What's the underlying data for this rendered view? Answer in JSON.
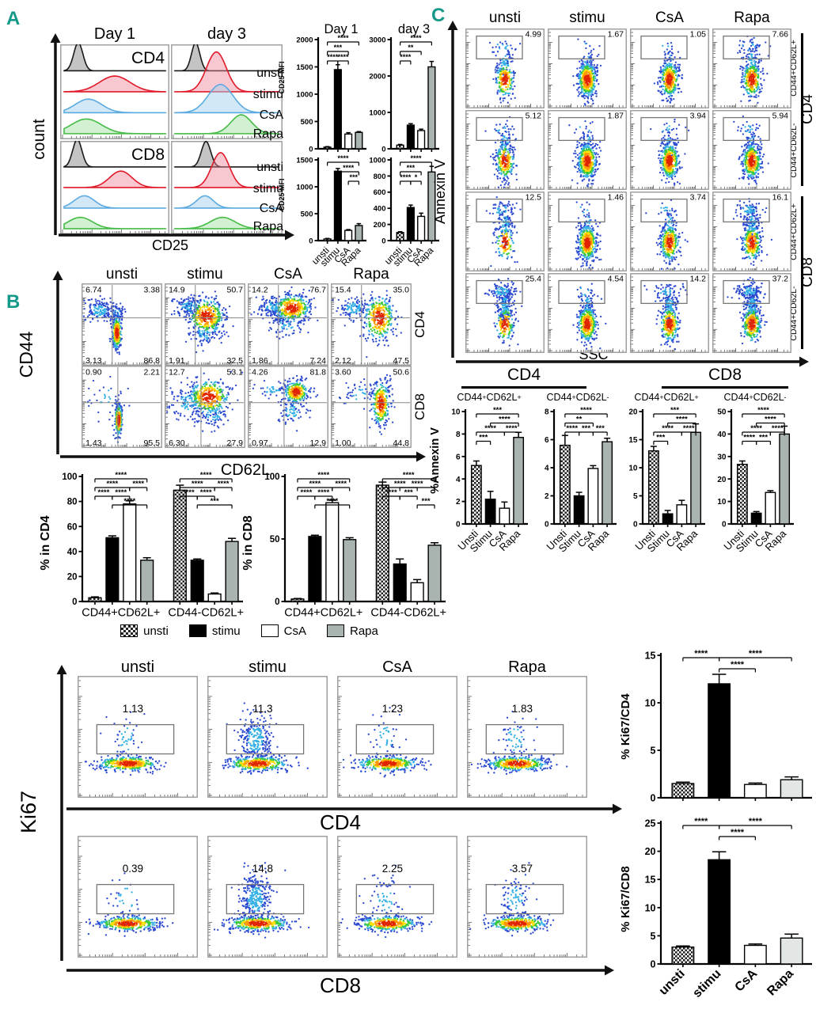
{
  "colors": {
    "panel_letter": "#17998a",
    "stimu_red": "#e01828",
    "csa_blue": "#5aaae0",
    "rapa_green": "#44bb44",
    "bar_gray": "#a9b3b0",
    "bar_light_gray": "#e2e6e4"
  },
  "conditions": [
    "unsti",
    "stimu",
    "CsA",
    "Rapa"
  ],
  "conditions_cap": [
    "Unsti",
    "Stimu",
    "CsA",
    "Rapa"
  ],
  "panelA": {
    "letter": "A",
    "headers": [
      "Day 1",
      "day 3"
    ],
    "cell_labels": [
      "CD4",
      "CD8"
    ],
    "count_label": "count",
    "x_label": "CD25",
    "mfi_ylabel": "CD25 MFI",
    "bar_titles": [
      "Day 1",
      "day 3"
    ]
  },
  "panelB": {
    "letter": "B",
    "y_label": "CD44",
    "x_label": "CD62L",
    "row_labels": [
      "CD4",
      "CD8"
    ],
    "legend": [
      "unsti",
      "stimu",
      "CsA",
      "Rapa"
    ]
  },
  "panelC": {
    "letter": "C",
    "y_label": "Annexin V",
    "x_label": "SSC",
    "row_sublabels": [
      "CD44+CD62L+",
      "CD44+CD62L-",
      "CD44+CD62L+",
      "CD44+CD62L-"
    ],
    "row_groups": [
      "CD4",
      "CD8"
    ],
    "bar_headers": [
      "CD4",
      "CD8"
    ],
    "bar_subheaders": [
      "CD44+CD62L+",
      "CD44+CD62L-",
      "CD44+CD62L+",
      "CD44+CD62L-"
    ],
    "bar_ylabel": "%Annexin V"
  },
  "panelK": {
    "y_label": "Ki67",
    "row_x_labels": [
      "CD4",
      "CD8"
    ]
  },
  "chart_data": [
    {
      "id": "a_day1_cd4",
      "type": "bar",
      "title": "Day 1",
      "categories": [
        "unsti",
        "stimu",
        "CsA",
        "Rapa"
      ],
      "values": [
        30,
        1450,
        270,
        300
      ],
      "errors": [
        10,
        90,
        25,
        15
      ],
      "ylim": [
        0,
        2000
      ],
      "yticks": [
        0,
        500,
        1000,
        1500,
        2000
      ],
      "ylabel": "CD25 MFI",
      "sig": [
        {
          "a": 0,
          "b": 1,
          "s": "****",
          "l": 0
        },
        {
          "a": 1,
          "b": 2,
          "s": "****",
          "l": 0
        },
        {
          "a": 0,
          "b": 2,
          "s": "***",
          "l": 1
        },
        {
          "a": 0,
          "b": 3,
          "s": "****",
          "l": 2
        }
      ]
    },
    {
      "id": "a_day3_cd4",
      "type": "bar",
      "title": "day 3",
      "categories": [
        "unsti",
        "stimu",
        "CsA",
        "Rapa"
      ],
      "values": [
        100,
        650,
        500,
        2250
      ],
      "errors": [
        20,
        40,
        40,
        150
      ],
      "ylim": [
        0,
        3000
      ],
      "yticks": [
        0,
        1000,
        2000,
        3000
      ],
      "ylabel": "CD25 MFI",
      "sig": [
        {
          "a": 0,
          "b": 1,
          "s": "****",
          "l": 0
        },
        {
          "a": 0,
          "b": 2,
          "s": "**",
          "l": 1
        },
        {
          "a": 0,
          "b": 3,
          "s": "****",
          "l": 2
        }
      ]
    },
    {
      "id": "a_day1_cd8",
      "type": "bar",
      "title": "Day 1",
      "categories": [
        "unsti",
        "stimu",
        "CsA",
        "Rapa"
      ],
      "values": [
        30,
        1290,
        190,
        280
      ],
      "errors": [
        10,
        50,
        15,
        35
      ],
      "ylim": [
        0,
        1500
      ],
      "yticks": [
        0,
        500,
        1000,
        1500
      ],
      "ylabel": "CD25 MFI",
      "sig": [
        {
          "a": 2,
          "b": 3,
          "s": "***",
          "l": 0
        },
        {
          "a": 1,
          "b": 3,
          "s": "****",
          "l": 1
        },
        {
          "a": 0,
          "b": 3,
          "s": "****",
          "l": 2
        }
      ]
    },
    {
      "id": "a_day3_cd8",
      "type": "bar",
      "title": "day 3",
      "categories": [
        "unsti",
        "stimu",
        "CsA",
        "Rapa"
      ],
      "values": [
        100,
        410,
        300,
        850
      ],
      "errors": [
        10,
        30,
        40,
        70
      ],
      "ylim": [
        0,
        1000
      ],
      "yticks": [
        0,
        200,
        400,
        600,
        800,
        1000
      ],
      "ylabel": "CD25 MFI",
      "sig": [
        {
          "a": 0,
          "b": 1,
          "s": "****",
          "l": 0
        },
        {
          "a": 1,
          "b": 2,
          "s": "*",
          "l": 0
        },
        {
          "a": 0,
          "b": 2,
          "s": "***",
          "l": 1
        },
        {
          "a": 0,
          "b": 3,
          "s": "****",
          "l": 2
        }
      ]
    },
    {
      "id": "b_cd4",
      "type": "bar",
      "groups": [
        "CD44+CD62L+",
        "CD44-CD62L+"
      ],
      "series": [
        "unsti",
        "stimu",
        "CsA",
        "Rapa"
      ],
      "values": [
        [
          3,
          51,
          78,
          33
        ],
        [
          89,
          33,
          6,
          48
        ]
      ],
      "errors": [
        [
          0.7,
          1.5,
          2.5,
          2
        ],
        [
          4,
          1,
          0.8,
          2.5
        ]
      ],
      "ylim": [
        0,
        100
      ],
      "yticks": [
        0,
        20,
        40,
        60,
        80,
        100
      ],
      "ylabel": "% in CD4",
      "sig": [
        [
          {
            "a": 1,
            "b": 3,
            "s": "****",
            "l": 0
          },
          {
            "a": 0,
            "b": 1,
            "s": "****",
            "l": 1
          },
          {
            "a": 1,
            "b": 2,
            "s": "****",
            "l": 1
          },
          {
            "a": 0,
            "b": 2,
            "s": "****",
            "l": 2
          },
          {
            "a": 2,
            "b": 3,
            "s": "****",
            "l": 2
          },
          {
            "a": 0,
            "b": 3,
            "s": "****",
            "l": 3
          }
        ],
        [
          {
            "a": 1,
            "b": 3,
            "s": "***",
            "l": 0
          },
          {
            "a": 0,
            "b": 1,
            "s": "****",
            "l": 1
          },
          {
            "a": 1,
            "b": 2,
            "s": "****",
            "l": 1
          },
          {
            "a": 0,
            "b": 2,
            "s": "****",
            "l": 2
          },
          {
            "a": 2,
            "b": 3,
            "s": "****",
            "l": 2
          },
          {
            "a": 0,
            "b": 3,
            "s": "****",
            "l": 3
          }
        ]
      ]
    },
    {
      "id": "b_cd8",
      "type": "bar",
      "groups": [
        "CD44+CD62L+",
        "CD44-CD62L+"
      ],
      "series": [
        "unsti",
        "stimu",
        "CsA",
        "Rapa"
      ],
      "values": [
        [
          2,
          52,
          79,
          49.5
        ],
        [
          93,
          30,
          15,
          45
        ]
      ],
      "errors": [
        [
          0.4,
          1,
          2,
          1.5
        ],
        [
          2.5,
          4,
          2.5,
          2
        ]
      ],
      "ylim": [
        0,
        100
      ],
      "yticks": [
        0,
        50,
        100
      ],
      "ylabel": "% in CD8",
      "sig": [
        [
          {
            "a": 1,
            "b": 3,
            "s": "****",
            "l": 0
          },
          {
            "a": 0,
            "b": 1,
            "s": "****",
            "l": 1
          },
          {
            "a": 1,
            "b": 2,
            "s": "****",
            "l": 1
          },
          {
            "a": 0,
            "b": 2,
            "s": "****",
            "l": 2
          },
          {
            "a": 2,
            "b": 3,
            "s": "****",
            "l": 2
          },
          {
            "a": 0,
            "b": 3,
            "s": "****",
            "l": 3
          }
        ],
        [
          {
            "a": 2,
            "b": 3,
            "s": "***",
            "l": 0
          },
          {
            "a": 0,
            "b": 1,
            "s": "****",
            "l": 1
          },
          {
            "a": 1,
            "b": 2,
            "s": "***",
            "l": 1
          },
          {
            "a": 0,
            "b": 2,
            "s": "****",
            "l": 2
          },
          {
            "a": 1,
            "b": 3,
            "s": "****",
            "l": 2
          },
          {
            "a": 0,
            "b": 3,
            "s": "****",
            "l": 3
          }
        ]
      ]
    },
    {
      "id": "c_cd4_pp",
      "type": "bar",
      "subtitle": "CD44+CD62L+",
      "categories": [
        "Unsti",
        "Stimu",
        "CsA",
        "Rapa"
      ],
      "values": [
        5.2,
        2.2,
        1.4,
        7.7
      ],
      "errors": [
        0.4,
        0.7,
        0.55,
        0.45
      ],
      "ylim": [
        0,
        10
      ],
      "yticks": [
        0,
        2,
        4,
        6,
        8,
        10
      ],
      "ylabel": "%Annexin V",
      "sig": [
        {
          "a": 0,
          "b": 1,
          "s": "***",
          "l": 0
        },
        {
          "a": 0,
          "b": 2,
          "s": "****",
          "l": 1
        },
        {
          "a": 2,
          "b": 3,
          "s": "****",
          "l": 1
        },
        {
          "a": 1,
          "b": 3,
          "s": "****",
          "l": 2
        },
        {
          "a": 0,
          "b": 3,
          "s": "***",
          "l": 3
        }
      ]
    },
    {
      "id": "c_cd4_pm",
      "type": "bar",
      "subtitle": "CD44+CD62L-",
      "categories": [
        "Unsti",
        "Stimu",
        "CsA",
        "Rapa"
      ],
      "values": [
        5.6,
        2.0,
        3.95,
        5.85
      ],
      "errors": [
        0.7,
        0.25,
        0.2,
        0.25
      ],
      "ylim": [
        0,
        8
      ],
      "yticks": [
        0,
        2,
        4,
        6,
        8
      ],
      "ylabel": "%Annexin V",
      "sig": [
        {
          "a": 0,
          "b": 1,
          "s": "****",
          "l": 0
        },
        {
          "a": 1,
          "b": 2,
          "s": "***",
          "l": 0
        },
        {
          "a": 2,
          "b": 3,
          "s": "***",
          "l": 0
        },
        {
          "a": 0,
          "b": 2,
          "s": "**",
          "l": 1
        },
        {
          "a": 0,
          "b": 3,
          "s": "****",
          "l": 2
        }
      ]
    },
    {
      "id": "c_cd8_pp",
      "type": "bar",
      "subtitle": "CD44+CD62L+",
      "categories": [
        "Unsti",
        "Stimu",
        "CsA",
        "Rapa"
      ],
      "values": [
        13,
        1.8,
        3.4,
        16.3
      ],
      "errors": [
        0.8,
        0.6,
        0.8,
        1.5
      ],
      "ylim": [
        0,
        20
      ],
      "yticks": [
        0,
        5,
        10,
        15,
        20
      ],
      "ylabel": "%Annexin V",
      "sig": [
        {
          "a": 0,
          "b": 1,
          "s": "***",
          "l": 0
        },
        {
          "a": 0,
          "b": 2,
          "s": "****",
          "l": 1
        },
        {
          "a": 2,
          "b": 3,
          "s": "****",
          "l": 1
        },
        {
          "a": 1,
          "b": 3,
          "s": "****",
          "l": 2
        },
        {
          "a": 0,
          "b": 3,
          "s": "***",
          "l": 3
        }
      ]
    },
    {
      "id": "c_cd8_pm",
      "type": "bar",
      "subtitle": "CD44+CD62L-",
      "categories": [
        "Unsti",
        "Stimu",
        "CsA",
        "Rapa"
      ],
      "values": [
        26.5,
        4.8,
        14,
        40
      ],
      "errors": [
        1.5,
        0.7,
        0.8,
        3.5
      ],
      "ylim": [
        0,
        50
      ],
      "yticks": [
        0,
        10,
        20,
        30,
        40,
        50
      ],
      "ylabel": "%Annexin V",
      "sig": [
        {
          "a": 0,
          "b": 1,
          "s": "****",
          "l": 0
        },
        {
          "a": 1,
          "b": 2,
          "s": "***",
          "l": 0
        },
        {
          "a": 0,
          "b": 2,
          "s": "****",
          "l": 1
        },
        {
          "a": 2,
          "b": 3,
          "s": "****",
          "l": 1
        },
        {
          "a": 1,
          "b": 3,
          "s": "****",
          "l": 2
        },
        {
          "a": 0,
          "b": 3,
          "s": "****",
          "l": 3
        }
      ]
    },
    {
      "id": "ki67_cd4",
      "type": "bar",
      "categories": [
        "unsti",
        "stimu",
        "CsA",
        "Rapa"
      ],
      "values": [
        1.5,
        12,
        1.4,
        1.9
      ],
      "errors": [
        0.15,
        1,
        0.15,
        0.3
      ],
      "ylim": [
        0,
        15
      ],
      "yticks": [
        0,
        5,
        10,
        15
      ],
      "ylabel": "% Ki67/CD4",
      "sig": [
        {
          "a": 1,
          "b": 2,
          "s": "****",
          "l": 0
        },
        {
          "a": 0,
          "b": 1,
          "s": "****",
          "l": 1
        },
        {
          "a": 1,
          "b": 3,
          "s": "****",
          "l": 1
        }
      ]
    },
    {
      "id": "ki67_cd8",
      "type": "bar",
      "categories": [
        "unsti",
        "stimu",
        "CsA",
        "Rapa"
      ],
      "values": [
        3,
        18.5,
        3.3,
        4.6
      ],
      "errors": [
        0.2,
        1.4,
        0.25,
        0.7
      ],
      "ylim": [
        0,
        25
      ],
      "yticks": [
        0,
        5,
        10,
        15,
        20,
        25
      ],
      "ylabel": "% Ki67/CD8",
      "sig": [
        {
          "a": 1,
          "b": 2,
          "s": "****",
          "l": 0
        },
        {
          "a": 0,
          "b": 1,
          "s": "****",
          "l": 1
        },
        {
          "a": 1,
          "b": 3,
          "s": "****",
          "l": 1
        }
      ]
    },
    {
      "id": "c_flow",
      "type": "scatter",
      "xlabel": "SSC",
      "ylabel": "Annexin V",
      "cols": [
        "unsti",
        "stimu",
        "CsA",
        "Rapa"
      ],
      "rows": [
        "CD44+CD62L+ CD4",
        "CD44+CD62L- CD4",
        "CD44+CD62L+ CD8",
        "CD44+CD62L- CD8"
      ],
      "gate_pct": [
        [
          "4.99",
          "1.67",
          "1.05",
          "7.66"
        ],
        [
          "5.12",
          "1.87",
          "3.94",
          "5.94"
        ],
        [
          "12.5",
          "1.46",
          "3.74",
          "16.1"
        ],
        [
          "25.4",
          "4.54",
          "14.2",
          "37.2"
        ]
      ]
    },
    {
      "id": "b_flow",
      "type": "scatter",
      "xlabel": "CD62L",
      "ylabel": "CD44",
      "rows": [
        "CD4",
        "CD8"
      ],
      "cols": [
        "unsti",
        "stimu",
        "CsA",
        "Rapa"
      ],
      "quadrants": [
        [
          [
            "6.74",
            "3.38",
            "3.13",
            "86.8"
          ],
          [
            "14.9",
            "50.7",
            "1.91",
            "32.5"
          ],
          [
            "14.2",
            "76.7",
            "1.86",
            "7.24"
          ],
          [
            "15.4",
            "35.0",
            "2.12",
            "47.5"
          ]
        ],
        [
          [
            "0.90",
            "2.21",
            "1.43",
            "95.5"
          ],
          [
            "12.7",
            "53.1",
            "6.30",
            "27.9"
          ],
          [
            "4.26",
            "81.8",
            "0.97",
            "12.9"
          ],
          [
            "3.60",
            "50.6",
            "1.00",
            "44.8"
          ]
        ]
      ]
    },
    {
      "id": "k_flow",
      "type": "scatter",
      "xlabels": [
        "CD4",
        "CD8"
      ],
      "ylabel": "Ki67",
      "cols": [
        "unsti",
        "stimu",
        "CsA",
        "Rapa"
      ],
      "gate_pct": [
        [
          "1.13",
          "11.3",
          "1.23",
          "1.83"
        ],
        [
          "0.39",
          "14.8",
          "2.25",
          "3.57"
        ]
      ]
    },
    {
      "id": "a_hist",
      "type": "histogram",
      "cols": [
        "Day 1",
        "day 3"
      ],
      "rows": [
        "CD4",
        "CD8"
      ],
      "series": [
        "unsti",
        "stimu",
        "CsA",
        "Rapa"
      ],
      "xlabel": "CD25",
      "ylabel": "count"
    }
  ]
}
